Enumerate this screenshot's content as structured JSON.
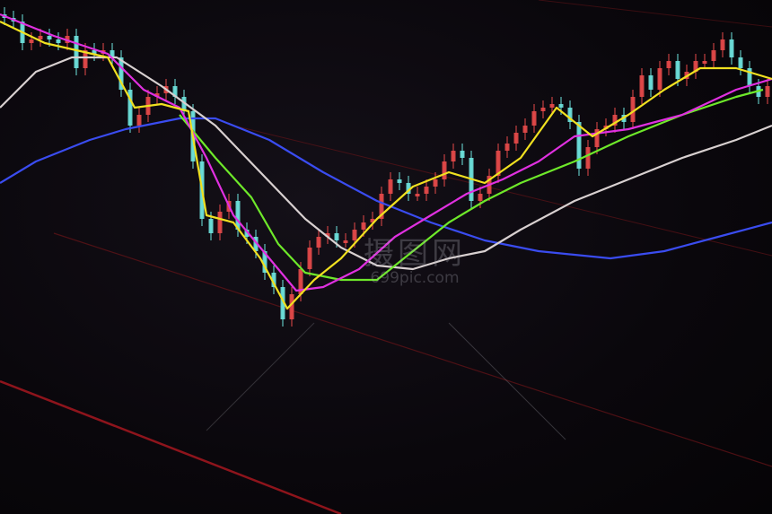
{
  "watermark": {
    "text_cn": "摄图网",
    "text_en": "699pic.com"
  },
  "chart_data": {
    "type": "candlestick",
    "title": "",
    "xlabel": "",
    "ylabel": "",
    "ylim": [
      0,
      100
    ],
    "grid": false,
    "colors": {
      "up": "#e84a4a",
      "down": "#6fe6e0",
      "background": "#0a070c",
      "gridline": "#6a1418"
    },
    "closes": [
      95,
      94,
      88,
      89,
      90,
      89,
      88,
      90,
      81,
      86,
      85,
      86,
      84,
      75,
      65,
      68,
      73,
      74,
      76,
      73,
      69,
      55,
      39,
      35,
      41,
      44,
      36,
      34,
      30,
      24,
      20,
      11,
      18,
      25,
      31,
      34,
      35,
      33,
      33,
      36,
      38,
      39,
      46,
      50,
      49,
      46,
      46,
      48,
      50,
      55,
      58,
      56,
      44,
      46,
      51,
      58,
      60,
      63,
      65,
      69,
      70,
      71,
      70,
      66,
      53,
      59,
      64,
      65,
      68,
      66,
      73,
      79,
      75,
      81,
      83,
      78,
      80,
      83,
      83,
      86,
      89,
      84,
      81,
      76,
      73,
      76
    ],
    "series": [
      {
        "color": "#3a4cf0",
        "points": [
          [
            0,
            49
          ],
          [
            4,
            55
          ],
          [
            10,
            61
          ],
          [
            14,
            64
          ],
          [
            20,
            67
          ],
          [
            24,
            67
          ],
          [
            30,
            61
          ],
          [
            36,
            52
          ],
          [
            42,
            44
          ],
          [
            48,
            38
          ],
          [
            54,
            33
          ],
          [
            60,
            30
          ],
          [
            68,
            28
          ],
          [
            74,
            30
          ],
          [
            80,
            34
          ],
          [
            86,
            38
          ]
        ]
      },
      {
        "color": "#d8d0d0",
        "points": [
          [
            0,
            70
          ],
          [
            4,
            80
          ],
          [
            8,
            84
          ],
          [
            13,
            84
          ],
          [
            18,
            76
          ],
          [
            24,
            65
          ],
          [
            29,
            52
          ],
          [
            34,
            39
          ],
          [
            38,
            31
          ],
          [
            42,
            26
          ],
          [
            46,
            25
          ],
          [
            50,
            28
          ],
          [
            54,
            30
          ],
          [
            58,
            36
          ],
          [
            64,
            44
          ],
          [
            70,
            50
          ],
          [
            76,
            56
          ],
          [
            82,
            61
          ],
          [
            86,
            65
          ]
        ]
      },
      {
        "color": "#6ee82a",
        "points": [
          [
            20,
            68
          ],
          [
            24,
            56
          ],
          [
            28,
            45
          ],
          [
            31,
            32
          ],
          [
            34,
            24
          ],
          [
            38,
            22
          ],
          [
            42,
            22
          ],
          [
            46,
            30
          ],
          [
            50,
            38
          ],
          [
            54,
            44
          ],
          [
            58,
            49
          ],
          [
            64,
            55
          ],
          [
            70,
            62
          ],
          [
            76,
            68
          ],
          [
            82,
            73
          ],
          [
            85,
            75
          ]
        ]
      },
      {
        "color": "#e030e0",
        "points": [
          [
            0,
            96
          ],
          [
            6,
            90
          ],
          [
            12,
            85
          ],
          [
            16,
            75
          ],
          [
            20,
            70
          ],
          [
            23,
            56
          ],
          [
            26,
            40
          ],
          [
            30,
            28
          ],
          [
            33,
            19
          ],
          [
            36,
            20
          ],
          [
            40,
            25
          ],
          [
            44,
            34
          ],
          [
            48,
            40
          ],
          [
            52,
            46
          ],
          [
            56,
            50
          ],
          [
            60,
            55
          ],
          [
            64,
            62
          ],
          [
            70,
            64
          ],
          [
            76,
            68
          ],
          [
            82,
            75
          ],
          [
            86,
            78
          ]
        ]
      },
      {
        "color": "#f0e020",
        "points": [
          [
            0,
            94
          ],
          [
            5,
            88
          ],
          [
            12,
            84
          ],
          [
            15,
            70
          ],
          [
            18,
            71
          ],
          [
            21,
            69
          ],
          [
            23,
            40
          ],
          [
            26,
            38
          ],
          [
            29,
            28
          ],
          [
            32,
            14
          ],
          [
            35,
            22
          ],
          [
            38,
            28
          ],
          [
            42,
            39
          ],
          [
            46,
            48
          ],
          [
            50,
            52
          ],
          [
            54,
            49
          ],
          [
            58,
            56
          ],
          [
            62,
            70
          ],
          [
            66,
            62
          ],
          [
            70,
            68
          ],
          [
            74,
            75
          ],
          [
            78,
            81
          ],
          [
            82,
            81
          ],
          [
            86,
            78
          ]
        ]
      }
    ]
  }
}
